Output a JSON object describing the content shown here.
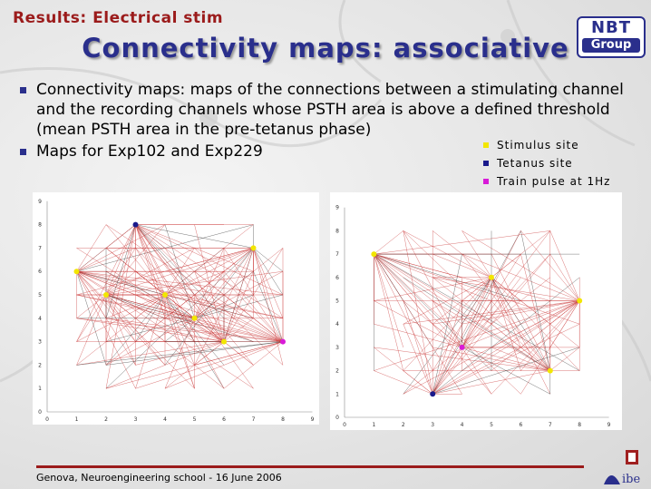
{
  "header": {
    "section": "Results: Electrical stim",
    "title": "Connectivity maps: associative",
    "logo_line1": "NBT",
    "logo_line2": "Group"
  },
  "bullets": [
    "Connectivity maps: maps of the connections between a stimulating channel and the recording channels whose PSTH area is above a defined threshold (mean PSTH area in the pre-tetanus phase)",
    "Maps for Exp102 and Exp229"
  ],
  "legend": [
    {
      "label": "Stimulus site",
      "color": "#f2e600"
    },
    {
      "label": "Tetanus site",
      "color": "#1a1a8c"
    },
    {
      "label": "Train pulse at 1Hz",
      "color": "#d81bd8"
    }
  ],
  "maps": [
    {
      "name": "Exp102",
      "x_ticks": [
        "0",
        "1",
        "2",
        "3",
        "4",
        "5",
        "6",
        "7",
        "8",
        "9"
      ],
      "y_ticks": [
        "0",
        "1",
        "2",
        "3",
        "4",
        "5",
        "6",
        "7",
        "8",
        "9"
      ],
      "stimulus_sites": [
        [
          1,
          6
        ],
        [
          2,
          5
        ],
        [
          4,
          5
        ],
        [
          5,
          4
        ],
        [
          6,
          3
        ],
        [
          7,
          7
        ]
      ],
      "tetanus_site": [
        3,
        8
      ],
      "train_site": [
        8,
        3
      ]
    },
    {
      "name": "Exp229",
      "x_ticks": [
        "0",
        "1",
        "2",
        "3",
        "4",
        "5",
        "6",
        "7",
        "8",
        "9"
      ],
      "y_ticks": [
        "0",
        "1",
        "2",
        "3",
        "4",
        "5",
        "6",
        "7",
        "8",
        "9"
      ],
      "stimulus_sites": [
        [
          1,
          7
        ],
        [
          5,
          6
        ],
        [
          8,
          5
        ],
        [
          7,
          2
        ]
      ],
      "tetanus_site": [
        3,
        1
      ],
      "train_site": [
        4,
        3
      ]
    }
  ],
  "footer": {
    "text": "Genova, Neuroengineering school - 16 June 2006",
    "logo": "ibe"
  },
  "colors": {
    "title": "#2a2f8c",
    "section": "#9b1b1b",
    "connection_red": "#c83232",
    "connection_black": "#333333"
  }
}
